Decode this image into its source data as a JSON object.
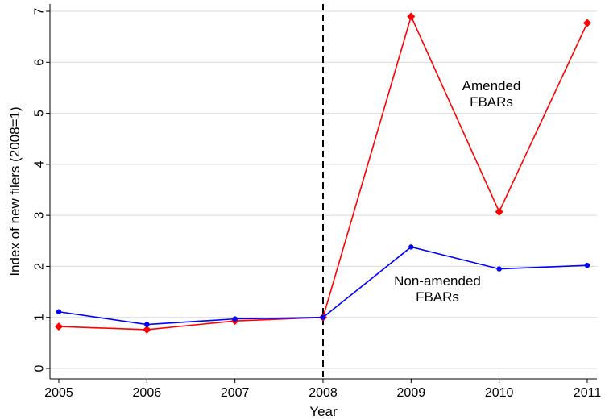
{
  "chart_data": {
    "type": "line",
    "xlabel": "Year",
    "ylabel": "Index of new filers (2008=1)",
    "x": [
      2005,
      2006,
      2007,
      2008,
      2009,
      2010,
      2011
    ],
    "xticks": [
      "2005",
      "2006",
      "2007",
      "2008",
      "2009",
      "2010",
      "2011"
    ],
    "yticks": [
      "0",
      "1",
      "2",
      "3",
      "4",
      "5",
      "6",
      "7"
    ],
    "xlim": [
      2005,
      2011
    ],
    "ylim": [
      0,
      7
    ],
    "grid": true,
    "reference_line_x": 2008,
    "series": [
      {
        "name": "Amended FBARs",
        "label_lines": [
          "Amended",
          "FBARs"
        ],
        "color": "#ff0000",
        "marker": "diamond",
        "values": [
          0.82,
          0.76,
          0.93,
          1.0,
          6.9,
          3.07,
          6.77
        ]
      },
      {
        "name": "Non-amended FBARs",
        "label_lines": [
          "Non-amended",
          "FBARs"
        ],
        "color": "#0000ff",
        "marker": "circle",
        "values": [
          1.11,
          0.86,
          0.97,
          1.0,
          2.38,
          1.95,
          2.02
        ]
      }
    ]
  }
}
